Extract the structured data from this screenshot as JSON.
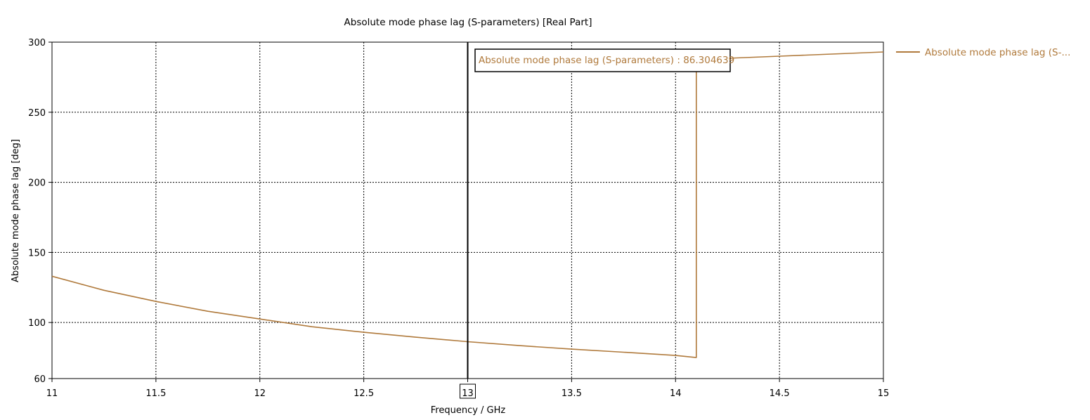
{
  "colors": {
    "series": "#b07a3c",
    "grid": "#000000",
    "marker_box_border": "#000000"
  },
  "chart_data": {
    "type": "line",
    "title": "Absolute mode phase lag (S-parameters) [Real Part]",
    "xlabel": "Frequency / GHz",
    "ylabel": "Absolute mode phase lag [deg]",
    "xlim": [
      11,
      15
    ],
    "ylim": [
      60,
      300
    ],
    "x_ticks": [
      "11",
      "11.5",
      "12",
      "12.5",
      "13",
      "13.5",
      "14",
      "14.5",
      "15"
    ],
    "y_ticks": [
      "60",
      "100",
      "150",
      "200",
      "250",
      "300"
    ],
    "grid": true,
    "legend_position": "right",
    "series": [
      {
        "name": "Absolute mode phase lag (S-...",
        "x": [
          11,
          11.25,
          11.5,
          11.75,
          12,
          12.25,
          12.5,
          12.75,
          13,
          13.25,
          13.5,
          13.75,
          14,
          14.1,
          14.1,
          14.25,
          14.5,
          14.75,
          15
        ],
        "y": [
          133,
          123,
          115,
          108,
          102.5,
          97,
          93,
          89.5,
          86.3,
          83.5,
          81,
          78.8,
          76.5,
          75,
          287.5,
          288.5,
          290,
          291.5,
          293
        ]
      }
    ],
    "marker": {
      "x": 13,
      "x_label": "13",
      "label": "Absolute mode phase lag (S-parameters) : 86.304639"
    }
  }
}
